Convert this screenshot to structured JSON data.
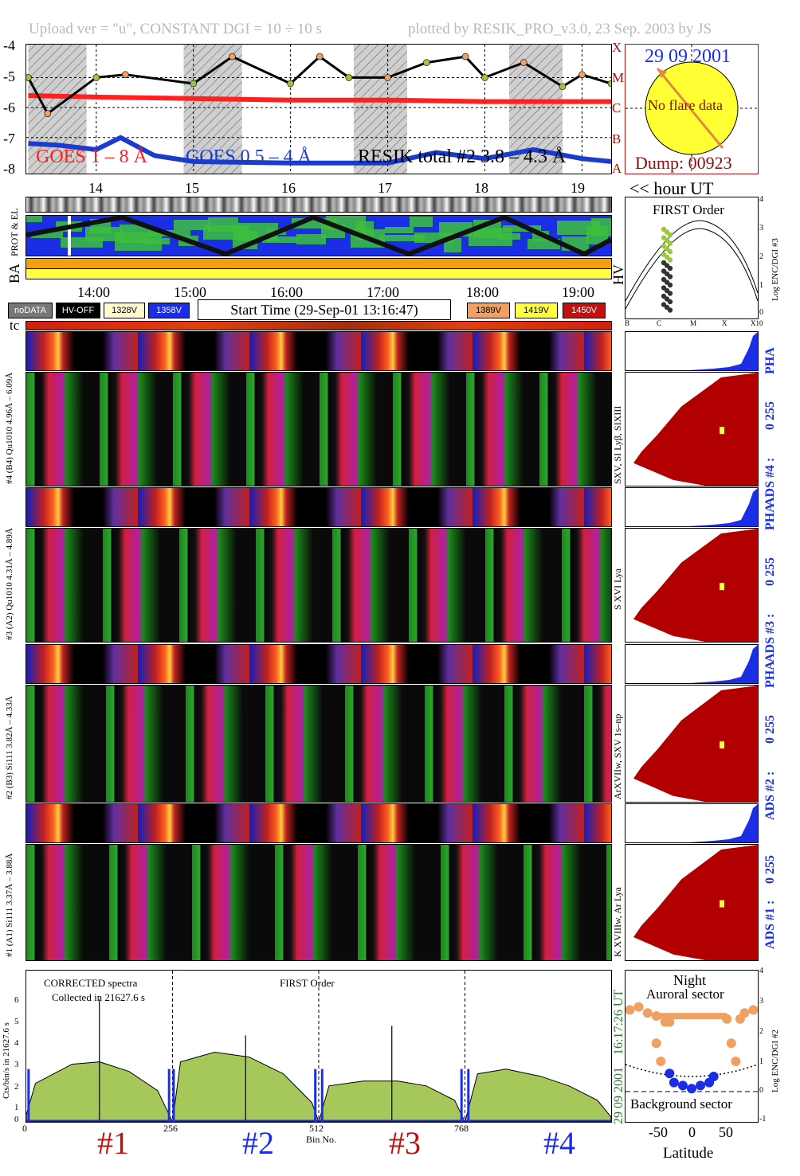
{
  "header": {
    "left": "Upload ver = \"u\", CONSTANT  DGI =  10 ÷ 10 s",
    "right": "plotted by RESIK_PRO_v3.0, 23 Sep. 2003 by JS"
  },
  "colors": {
    "goes_long": "#ff2020",
    "goes_short": "#1a3ccc",
    "resik_total": "#000000",
    "orange": "#f0a060",
    "green": "#9cc63c",
    "night_shade": "#cfcfcf",
    "ads_fill": "#b20000",
    "pha_fill": "#1a2ee6",
    "spectrum_fill": "#a6c85a"
  },
  "goes_plot": {
    "y_ticks": [
      "-4",
      "-5",
      "-6",
      "-7",
      "-8"
    ],
    "class_letters": [
      "X",
      "M",
      "C",
      "B",
      "A"
    ],
    "legend": [
      "GOES 1 – 8 Å",
      "GOES 0.5 – 4 Å",
      "RESIK total #2  3.8 – 4.3 Å"
    ],
    "hour_ticks": [
      "14",
      "15",
      "16",
      "17",
      "18",
      "19"
    ],
    "hour_axis_label": "<< hour UT"
  },
  "date_panel": {
    "date": "29 09 2001",
    "no_flare": "No flare data",
    "dump": "Dump: 00923"
  },
  "strip_labels": {
    "prot_el": "PROT & EL",
    "ba": "BA",
    "hv": "HV",
    "tc": "tc"
  },
  "time_axis": [
    "14:00",
    "15:00",
    "16:00",
    "17:00",
    "18:00",
    "19:00"
  ],
  "legend_boxes": {
    "nodata": "noDATA",
    "hvoff": "HV-OFF",
    "v1": "1328V",
    "v2": "1358V",
    "v3": "1389V",
    "v4": "1419V",
    "v5": "1450V",
    "start_time": "Start Time (29-Sep-01 13:16:47)"
  },
  "first_order_plot": {
    "title": "FIRST Order",
    "ylabel": "Log ENC/DGI #3",
    "y_ticks": [
      "4",
      "3",
      "2",
      "1",
      "0"
    ],
    "x_ticks": [
      "B",
      "C",
      "M",
      "X",
      "X10"
    ]
  },
  "channels": [
    {
      "pha_label": "#4 (B4) Qu1010 4.96Å – 6.09Å",
      "lines": "SXV, SI Lyβ, SIXIII",
      "ads": "ADS #4 :",
      "scale": "0 255",
      "pha": "PHA"
    },
    {
      "pha_label": "#3 (A2) Qu1010 4.31Å – 4.89Å",
      "lines": "S XVI Lya",
      "ads": "ADS #3 :",
      "scale": "0 255",
      "pha": "PHA"
    },
    {
      "pha_label": "#2 (B3) Si111 3.82Å – 4.33Å",
      "lines": "ArXVIIw, SXV 1s–np",
      "ads": "ADS #2 :",
      "scale": "0 255",
      "pha": "PHA"
    },
    {
      "pha_label": "#1 (A1) Si111 3.37Å – 3.88Å",
      "lines": "K XVIIIw, Ar Lya",
      "ads": "ADS #1 :",
      "scale": "0 255",
      "pha": ""
    }
  ],
  "spectrum": {
    "title": "CORRECTED spectra",
    "subtitle": "Collected in 21627.6 s",
    "order": "FIRST Order",
    "ylabel": "Cts/bin/s in 21627.6 s",
    "xlabel": "Bin No.",
    "x_ticks": [
      "0",
      "256",
      "512",
      "768"
    ],
    "y_ticks": [
      "6",
      "5",
      "4",
      "3",
      "2",
      "1",
      "0"
    ],
    "time_label": "16:17:26 UT",
    "date_label": "29 09 2001",
    "bins": [
      "#1",
      "#2",
      "#3",
      "#4"
    ]
  },
  "latitude_plot": {
    "night": "Night",
    "auroral": "Auroral sector",
    "background": "Background sector",
    "ylabel": "Log ENC/DGI #2",
    "xlabel": "Latitude",
    "x_ticks": [
      "-50",
      "0",
      "50"
    ],
    "y_ticks": [
      "4",
      "3",
      "2",
      "1",
      "0",
      "-1"
    ]
  },
  "chart_data": [
    {
      "type": "line",
      "title": "",
      "x_label": "hour UT",
      "x_range": [
        13.28,
        19.3
      ],
      "y_range": [
        -8.2,
        -3.9
      ],
      "night_intervals": [
        [
          13.3,
          13.9
        ],
        [
          14.9,
          15.5
        ],
        [
          16.65,
          17.2
        ],
        [
          18.25,
          18.8
        ]
      ],
      "series": [
        {
          "name": "GOES 1 – 8 Å",
          "x": [
            13.3,
            14.0,
            15.0,
            16.0,
            17.0,
            18.0,
            19.0,
            19.3
          ],
          "y": [
            -5.6,
            -5.65,
            -5.7,
            -5.75,
            -5.75,
            -5.8,
            -5.8,
            -5.8
          ]
        },
        {
          "name": "GOES 0.5 – 4 Å",
          "x": [
            13.3,
            13.6,
            14.0,
            14.25,
            14.6,
            15.0,
            16.0,
            17.0,
            17.5,
            18.0,
            18.5,
            19.0,
            19.3
          ],
          "y": [
            -7.2,
            -7.25,
            -7.4,
            -7.0,
            -7.6,
            -7.8,
            -7.85,
            -7.85,
            -7.5,
            -7.7,
            -7.4,
            -7.7,
            -7.8
          ]
        },
        {
          "name": "RESIK total #2  3.8 – 4.3 Å",
          "x": [
            13.3,
            13.5,
            14.0,
            14.3,
            15.0,
            15.4,
            16.0,
            16.3,
            16.6,
            17.0,
            17.4,
            17.8,
            18.0,
            18.4,
            18.8,
            19.0,
            19.3
          ],
          "y": [
            -5.0,
            -6.2,
            -5.0,
            -4.9,
            -5.2,
            -4.3,
            -5.2,
            -4.3,
            -5.0,
            -5.0,
            -4.5,
            -4.3,
            -5.0,
            -4.5,
            -5.3,
            -4.9,
            -5.2
          ]
        }
      ]
    },
    {
      "type": "area",
      "title": "CORRECTED spectra",
      "x_label": "Bin No.",
      "y_label": "Cts/bin/s in 21627.6 s",
      "x_range": [
        0,
        1024
      ],
      "y_range": [
        0,
        6.3
      ],
      "segments": [
        {
          "name": "#1",
          "x": [
            0,
            16,
            80,
            128,
            180,
            230,
            256
          ],
          "y": [
            0.3,
            1.6,
            2.4,
            2.5,
            2.1,
            1.3,
            0
          ]
        },
        {
          "name": "#2",
          "x": [
            256,
            270,
            330,
            390,
            450,
            500,
            512
          ],
          "y": [
            0,
            2.5,
            2.9,
            2.7,
            2.0,
            0.8,
            0
          ]
        },
        {
          "name": "#3",
          "x": [
            512,
            530,
            590,
            650,
            700,
            750,
            768
          ],
          "y": [
            0,
            1.5,
            1.7,
            1.7,
            1.5,
            0.9,
            0
          ]
        },
        {
          "name": "#4",
          "x": [
            768,
            790,
            840,
            900,
            950,
            1000,
            1024
          ],
          "y": [
            0,
            2.0,
            2.2,
            1.9,
            1.5,
            0.9,
            0.2
          ]
        }
      ],
      "spikes": [
        {
          "x": 128,
          "y": 5.1
        },
        {
          "x": 384,
          "y": 3.6
        },
        {
          "x": 640,
          "y": 4.0
        }
      ]
    },
    {
      "type": "scatter",
      "title": "",
      "x_label": "Latitude",
      "y_label": "Log ENC/DGI #2",
      "x_range": [
        -75,
        75
      ],
      "y_range": [
        -1,
        4
      ],
      "series": [
        {
          "name": "orange",
          "x": [
            -70,
            -60,
            -50,
            -40,
            -40,
            -35,
            -30,
            -25,
            40,
            45,
            50,
            55,
            60,
            70
          ],
          "y": [
            2.7,
            2.8,
            2.6,
            2.5,
            1.6,
            1.0,
            2.3,
            2.3,
            2.4,
            1.6,
            1.0,
            2.4,
            2.6,
            2.7
          ]
        },
        {
          "name": "blue",
          "x": [
            -25,
            -20,
            -10,
            0,
            10,
            20,
            25
          ],
          "y": [
            0.6,
            0.3,
            0.2,
            0.1,
            0.2,
            0.3,
            0.5
          ]
        }
      ]
    }
  ]
}
